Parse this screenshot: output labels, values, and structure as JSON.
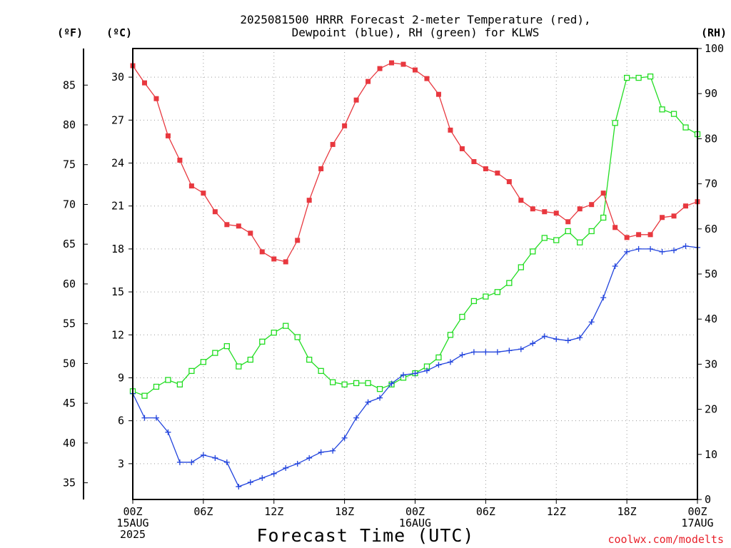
{
  "chart_data": {
    "type": "line",
    "title": [
      "2025081500 HRRR Forecast 2-meter Temperature (red),",
      "Dewpoint (blue), RH (green) for KLWS"
    ],
    "xlabel": "Forecast Time (UTC)",
    "credit": "coolwx.com/modelts",
    "units": {
      "fahrenheit": "(ºF)",
      "celsius": "(ºC)",
      "rh": "(RH)"
    },
    "x": [
      0,
      1,
      2,
      3,
      4,
      5,
      6,
      7,
      8,
      9,
      10,
      11,
      12,
      13,
      14,
      15,
      16,
      17,
      18,
      19,
      20,
      21,
      22,
      23,
      24,
      25,
      26,
      27,
      28,
      29,
      30,
      31,
      32,
      33,
      34,
      35,
      36,
      37,
      38,
      39,
      40,
      41,
      42,
      43,
      44,
      45,
      46,
      47,
      48
    ],
    "xlim": [
      0,
      48
    ],
    "x_ticks": [
      {
        "hour": 0,
        "lines": [
          "00Z",
          "15AUG",
          "2025"
        ]
      },
      {
        "hour": 6,
        "lines": [
          "06Z"
        ]
      },
      {
        "hour": 12,
        "lines": [
          "12Z"
        ]
      },
      {
        "hour": 18,
        "lines": [
          "18Z"
        ]
      },
      {
        "hour": 24,
        "lines": [
          "00Z",
          "16AUG"
        ]
      },
      {
        "hour": 30,
        "lines": [
          "06Z"
        ]
      },
      {
        "hour": 36,
        "lines": [
          "12Z"
        ]
      },
      {
        "hour": 42,
        "lines": [
          "18Z"
        ]
      },
      {
        "hour": 48,
        "lines": [
          "00Z",
          "17AUG"
        ]
      }
    ],
    "celsius_axis": {
      "ylim": [
        0.5,
        32.0
      ],
      "ticks": [
        "3",
        "6",
        "9",
        "12",
        "15",
        "18",
        "21",
        "24",
        "27",
        "30"
      ]
    },
    "fahrenheit_axis": {
      "ticks": [
        "35",
        "40",
        "45",
        "50",
        "55",
        "60",
        "65",
        "70",
        "75",
        "80",
        "85"
      ]
    },
    "rh_axis": {
      "ylim": [
        0,
        100
      ],
      "ticks": [
        "0",
        "10",
        "20",
        "30",
        "40",
        "50",
        "60",
        "70",
        "80",
        "90",
        "100"
      ]
    },
    "series": [
      {
        "name": "2-meter Temperature",
        "color": "#e8383f",
        "marker": "filled-square",
        "axis": "celsius",
        "values": [
          30.8,
          29.6,
          28.5,
          25.9,
          24.2,
          22.4,
          21.9,
          20.6,
          19.7,
          19.6,
          19.1,
          17.8,
          17.3,
          17.1,
          18.6,
          21.4,
          23.6,
          25.3,
          26.6,
          28.4,
          29.7,
          30.6,
          31.0,
          30.9,
          30.5,
          29.9,
          28.8,
          26.3,
          25.0,
          24.1,
          23.6,
          23.3,
          22.7,
          21.4,
          20.8,
          20.6,
          20.5,
          19.9,
          20.8,
          21.1,
          21.9,
          19.5,
          18.8,
          19.0,
          19.0,
          20.2,
          20.3,
          21.0,
          21.3
        ]
      },
      {
        "name": "Dewpoint",
        "color": "#2244dd",
        "marker": "plus",
        "axis": "celsius",
        "values": [
          7.9,
          6.2,
          6.2,
          5.2,
          3.1,
          3.1,
          3.6,
          3.4,
          3.1,
          1.4,
          1.7,
          2.0,
          2.3,
          2.7,
          3.0,
          3.4,
          3.8,
          3.9,
          4.8,
          6.2,
          7.3,
          7.6,
          8.6,
          9.2,
          9.3,
          9.5,
          9.9,
          10.1,
          10.6,
          10.8,
          10.8,
          10.8,
          10.9,
          11.0,
          11.4,
          11.9,
          11.7,
          11.6,
          11.8,
          12.9,
          14.6,
          16.8,
          17.8,
          18.0,
          18.0,
          17.8,
          17.9,
          18.2,
          18.1
        ]
      },
      {
        "name": "RH",
        "color": "#22dd22",
        "marker": "open-square",
        "axis": "rh",
        "values": [
          24,
          23,
          25,
          26.5,
          25.5,
          28.5,
          30.5,
          32.5,
          34,
          29.5,
          31,
          35,
          37,
          38.5,
          36,
          31,
          28.5,
          26,
          25.5,
          25.8,
          25.8,
          24.5,
          25.5,
          27,
          28,
          29.5,
          31.5,
          36.5,
          40.5,
          44,
          45,
          46,
          48,
          51.5,
          55,
          58,
          57.5,
          59.5,
          57,
          59.5,
          62.5,
          83.5,
          93.5,
          93.5,
          93.8,
          86.5,
          85.5,
          82.5,
          81
        ]
      }
    ]
  }
}
